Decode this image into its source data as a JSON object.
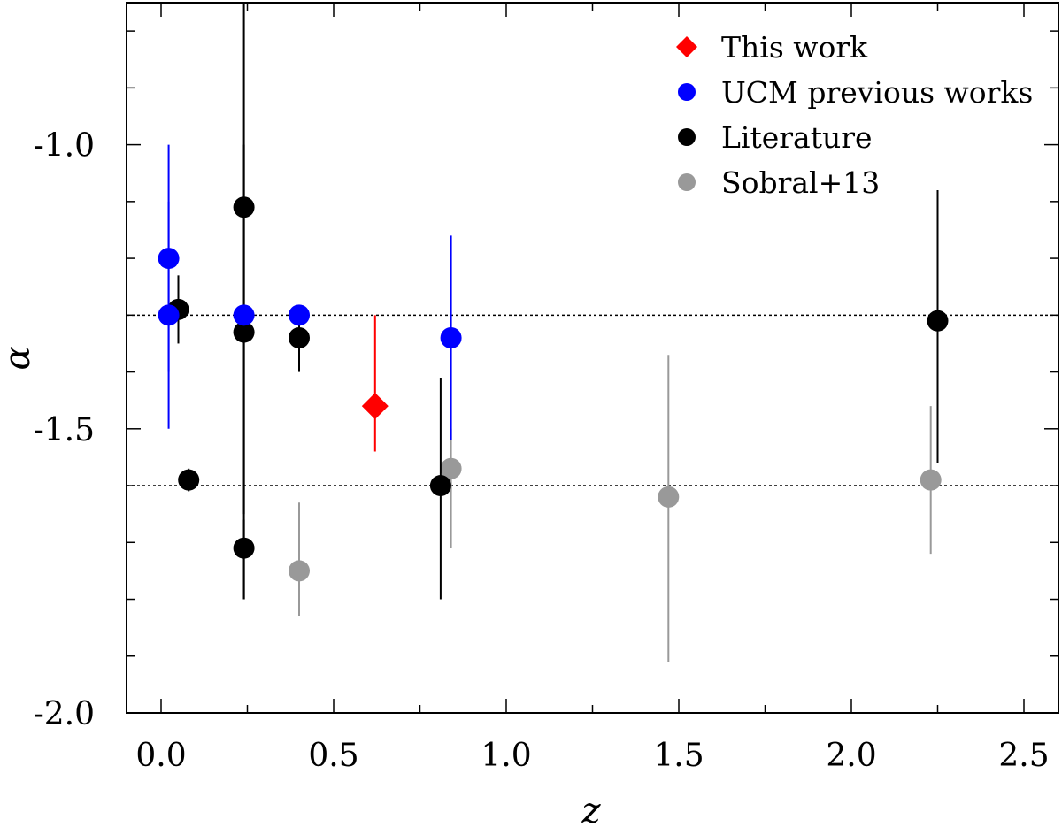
{
  "chart_data": {
    "type": "scatter",
    "title": "",
    "xlabel": "z",
    "ylabel": "α",
    "xlim": [
      -0.1,
      2.6
    ],
    "ylim": [
      -2.0,
      -0.75
    ],
    "x_ticks": [
      "0.0",
      "0.5",
      "1.0",
      "1.5",
      "2.0",
      "2.5"
    ],
    "y_ticks": [
      "-1.0",
      "-1.5",
      "-2.0"
    ],
    "x_tick_values": [
      0.0,
      0.5,
      1.0,
      1.5,
      2.0,
      2.5
    ],
    "y_tick_values": [
      -1.0,
      -1.5,
      -2.0
    ],
    "reference_lines": [
      -1.3,
      -1.6
    ],
    "legend_position": "top-right",
    "grid": false,
    "series": [
      {
        "name": "This work",
        "color": "#ff0000",
        "marker": "diamond",
        "points": [
          {
            "x": 0.62,
            "y": -1.46,
            "ylo": -1.54,
            "yhi": -1.3
          }
        ]
      },
      {
        "name": "UCM previous works",
        "color": "#0000ff",
        "marker": "circle",
        "points": [
          {
            "x": 0.022,
            "y": -1.2,
            "ylo": -1.4,
            "yhi": -1.1
          },
          {
            "x": 0.022,
            "y": -1.3,
            "ylo": -1.5,
            "yhi": -1.0
          },
          {
            "x": 0.24,
            "y": -1.3
          },
          {
            "x": 0.4,
            "y": -1.3
          },
          {
            "x": 0.84,
            "y": -1.34,
            "ylo": -1.52,
            "yhi": -1.16
          }
        ]
      },
      {
        "name": "Literature",
        "color": "#000000",
        "marker": "circle",
        "points": [
          {
            "x": 0.05,
            "y": -1.29,
            "ylo": -1.35,
            "yhi": -1.23
          },
          {
            "x": 0.08,
            "y": -1.59,
            "ylo": -1.61,
            "yhi": -1.57
          },
          {
            "x": 0.24,
            "y": -1.11,
            "ylo": -1.65,
            "yhi": -0.75
          },
          {
            "x": 0.24,
            "y": -1.33,
            "ylo": -1.8,
            "yhi": -1.0
          },
          {
            "x": 0.24,
            "y": -1.71,
            "ylo": -1.8,
            "yhi": -1.66
          },
          {
            "x": 0.4,
            "y": -1.34,
            "ylo": -1.4,
            "yhi": -1.3
          },
          {
            "x": 0.81,
            "y": -1.6,
            "ylo": -1.8,
            "yhi": -1.41
          },
          {
            "x": 2.25,
            "y": -1.31,
            "ylo": -1.56,
            "yhi": -1.08
          }
        ]
      },
      {
        "name": "Sobral+13",
        "color": "#999999",
        "marker": "circle",
        "points": [
          {
            "x": 0.4,
            "y": -1.75,
            "ylo": -1.83,
            "yhi": -1.63
          },
          {
            "x": 0.84,
            "y": -1.57,
            "ylo": -1.71,
            "yhi": -1.5
          },
          {
            "x": 1.47,
            "y": -1.62,
            "ylo": -1.91,
            "yhi": -1.37
          },
          {
            "x": 2.23,
            "y": -1.59,
            "ylo": -1.72,
            "yhi": -1.46
          }
        ]
      }
    ]
  }
}
